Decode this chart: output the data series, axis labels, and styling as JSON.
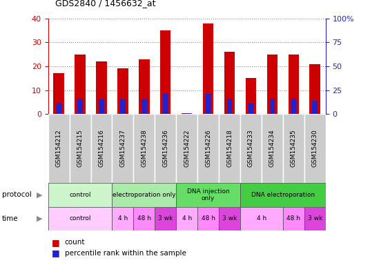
{
  "title": "GDS2840 / 1456632_at",
  "samples": [
    "GSM154212",
    "GSM154215",
    "GSM154216",
    "GSM154237",
    "GSM154238",
    "GSM154236",
    "GSM154222",
    "GSM154226",
    "GSM154218",
    "GSM154233",
    "GSM154234",
    "GSM154235",
    "GSM154230"
  ],
  "count_values": [
    17,
    25,
    22,
    19,
    23,
    35,
    0.3,
    38,
    26,
    15,
    25,
    25,
    21
  ],
  "percentile_values": [
    12,
    16,
    15,
    15,
    15,
    21,
    0.5,
    21,
    16,
    11,
    16,
    16,
    14
  ],
  "ylim_left": [
    0,
    40
  ],
  "ylim_right": [
    0,
    100
  ],
  "yticks_left": [
    0,
    10,
    20,
    30,
    40
  ],
  "yticks_right": [
    0,
    25,
    50,
    75,
    100
  ],
  "ytick_labels_right": [
    "0",
    "25",
    "50",
    "75",
    "100%"
  ],
  "bar_color": "#cc0000",
  "percentile_color": "#2222cc",
  "grid_color": "#888888",
  "bar_width": 0.5,
  "percentile_bar_width": 0.25,
  "axis_label_color_left": "#cc0000",
  "axis_label_color_right": "#2222cc",
  "xticklabel_bg": "#cccccc",
  "figure_bg": "#ffffff",
  "protocol_groups": [
    {
      "label": "control",
      "start": 0,
      "end": 3,
      "color": "#d5f5d5"
    },
    {
      "label": "electroporation only",
      "start": 3,
      "end": 6,
      "color": "#aae8aa"
    },
    {
      "label": "DNA injection\nonly",
      "start": 6,
      "end": 9,
      "color": "#66dd66"
    },
    {
      "label": "DNA electroporation",
      "start": 9,
      "end": 13,
      "color": "#44cc44"
    }
  ],
  "time_groups": [
    {
      "label": "control",
      "start": 0,
      "end": 3,
      "color": "#ffccff"
    },
    {
      "label": "4 h",
      "start": 3,
      "end": 4,
      "color": "#ffaaff"
    },
    {
      "label": "48 h",
      "start": 4,
      "end": 5,
      "color": "#ff88ff"
    },
    {
      "label": "3 wk",
      "start": 5,
      "end": 6,
      "color": "#ee44ee"
    },
    {
      "label": "4 h",
      "start": 6,
      "end": 7,
      "color": "#ffaaff"
    },
    {
      "label": "48 h",
      "start": 7,
      "end": 8,
      "color": "#ff88ff"
    },
    {
      "label": "3 wk",
      "start": 8,
      "end": 9,
      "color": "#ee44ee"
    },
    {
      "label": "4 h",
      "start": 9,
      "end": 11,
      "color": "#ffaaff"
    },
    {
      "label": "48 h",
      "start": 11,
      "end": 12,
      "color": "#ff88ff"
    },
    {
      "label": "3 wk",
      "start": 12,
      "end": 13,
      "color": "#ee44ee"
    }
  ],
  "legend_items": [
    {
      "color": "#cc0000",
      "label": "count"
    },
    {
      "color": "#2222cc",
      "label": "percentile rank within the sample"
    }
  ]
}
